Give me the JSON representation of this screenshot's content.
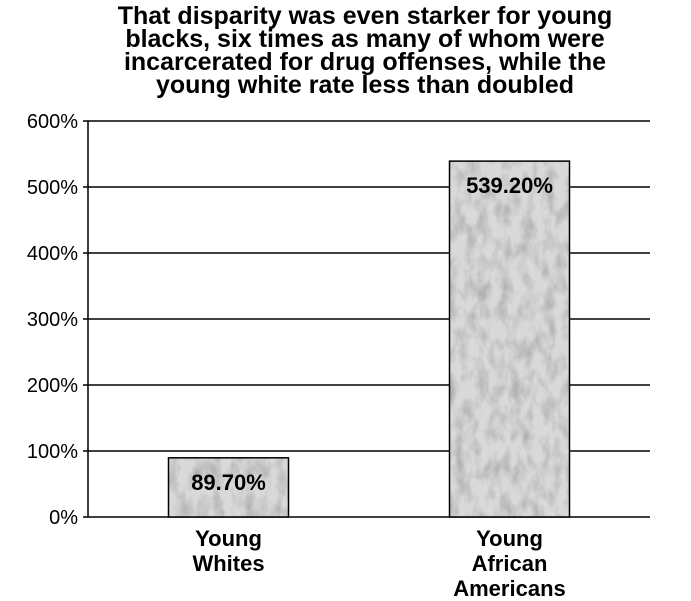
{
  "chart_data": {
    "type": "bar",
    "title_lines": [
      "That disparity was even starker for young",
      "blacks, six times as many of whom were",
      "incarcerated for drug offenses, while the",
      "young white rate less than doubled"
    ],
    "categories": [
      [
        "Young",
        "Whites"
      ],
      [
        "Young",
        "African",
        "Americans"
      ]
    ],
    "values": [
      89.7,
      539.2
    ],
    "data_labels": [
      "89.70%",
      "539.20%"
    ],
    "yticks": [
      0,
      100,
      200,
      300,
      400,
      500,
      600
    ],
    "ytick_labels": [
      "0%",
      "100%",
      "200%",
      "300%",
      "400%",
      "500%",
      "600%"
    ],
    "ylim": [
      0,
      600
    ],
    "grid": true,
    "legend": "none",
    "colors": {
      "bar_fill": "#d9d9d9",
      "bar_mottle": "#a8a8a8",
      "bar_stroke": "#000000",
      "gridline": "#000000",
      "text": "#000000"
    }
  }
}
